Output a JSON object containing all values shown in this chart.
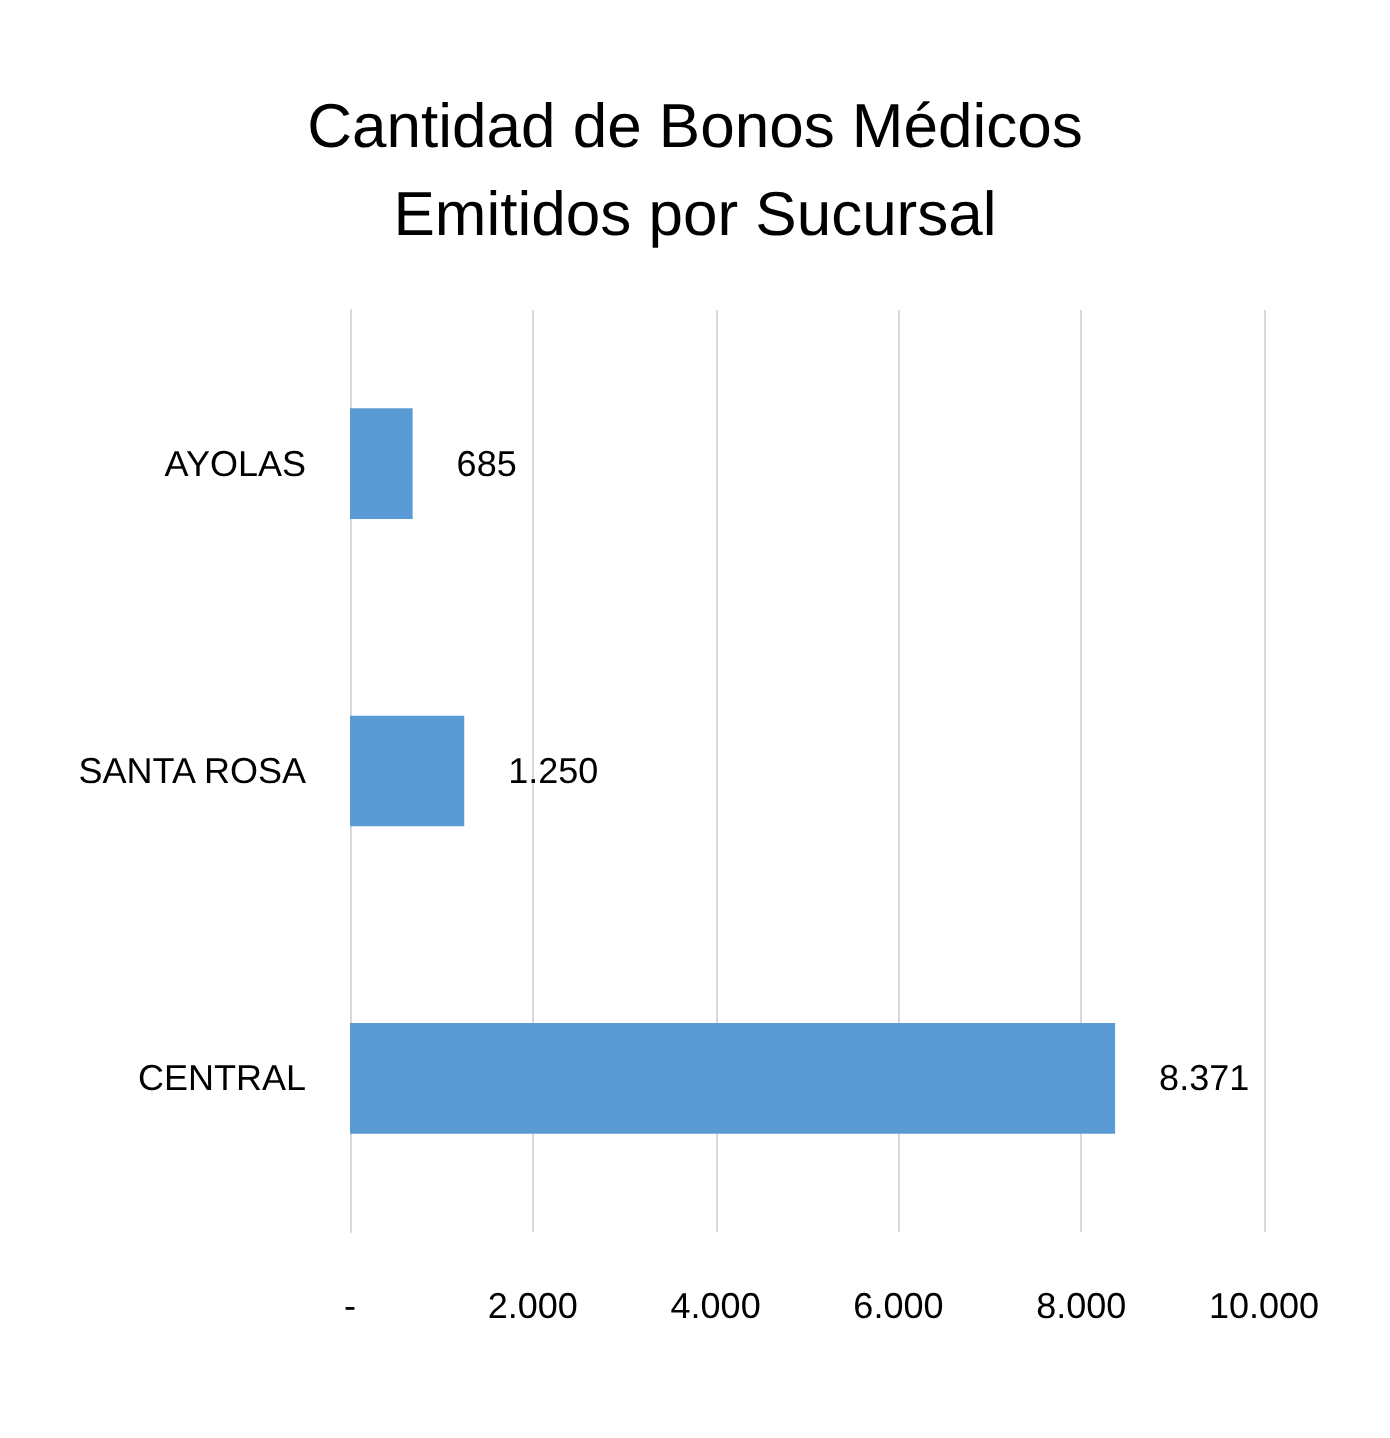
{
  "chart_data": {
    "type": "bar",
    "orientation": "horizontal",
    "title": "Cantidad de Bonos Médicos\nEmitidos por Sucursal",
    "categories": [
      "AYOLAS",
      "SANTA ROSA",
      "CENTRAL"
    ],
    "values": [
      685,
      1250,
      8371
    ],
    "value_labels": [
      "685",
      "1.250",
      "8.371"
    ],
    "color": "#5b9bd5",
    "xlim": [
      0,
      10000
    ],
    "xticks": [
      {
        "value": 0,
        "label": "-"
      },
      {
        "value": 2000,
        "label": "2.000"
      },
      {
        "value": 4000,
        "label": "4.000"
      },
      {
        "value": 6000,
        "label": "6.000"
      },
      {
        "value": 8000,
        "label": "8.000"
      },
      {
        "value": 10000,
        "label": "10.000"
      }
    ],
    "grid": "x"
  }
}
